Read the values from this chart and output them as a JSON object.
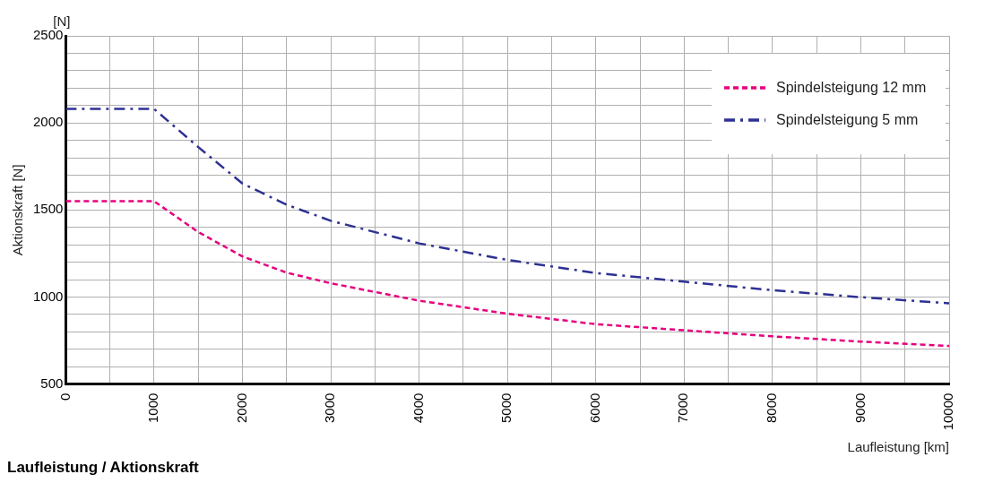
{
  "chart_data": {
    "type": "line",
    "title": "Laufleistung / Aktionskraft",
    "xlabel": "Laufleistung [km]",
    "ylabel": "Aktionskraft [N]",
    "annotations": [
      "[N]"
    ],
    "x": [
      0,
      1000,
      1500,
      2000,
      2500,
      3000,
      4000,
      5000,
      6000,
      7000,
      8000,
      9000,
      10000
    ],
    "series": [
      {
        "name": "Spindelsteigung 12 mm",
        "color": "#e6007e",
        "line_style": "dashed",
        "values": [
          1550,
          1550,
          1373,
          1233,
          1140,
          1079,
          979,
          904,
          844,
          809,
          774,
          744,
          719
        ]
      },
      {
        "name": "Spindelsteigung 5 mm",
        "color": "#2e3192",
        "line_style": "dashdot",
        "values": [
          2080,
          2080,
          1861,
          1652,
          1530,
          1438,
          1308,
          1213,
          1138,
          1088,
          1039,
          999,
          964
        ]
      }
    ],
    "xlim": [
      0,
      10000
    ],
    "xticks": [
      0,
      {
        "value": 500,
        "label": null
      },
      1000,
      {
        "value": 1500,
        "label": null
      },
      2000,
      {
        "value": 2500,
        "label": null
      },
      3000,
      {
        "value": 3500,
        "label": null
      },
      4000,
      {
        "value": 4500,
        "label": null
      },
      5000,
      {
        "value": 5500,
        "label": null
      },
      6000,
      {
        "value": 6500,
        "label": null
      },
      7000,
      {
        "value": 7500,
        "label": null
      },
      8000,
      {
        "value": 8500,
        "label": null
      },
      9000,
      {
        "value": 9500,
        "label": null
      },
      10000
    ],
    "ylim": [
      500,
      2500
    ],
    "yticks": [
      500,
      {
        "value": 600,
        "label": null
      },
      {
        "value": 700,
        "label": null
      },
      {
        "value": 800,
        "label": null
      },
      {
        "value": 900,
        "label": null
      },
      1000,
      {
        "value": 1100,
        "label": null
      },
      {
        "value": 1200,
        "label": null
      },
      {
        "value": 1300,
        "label": null
      },
      {
        "value": 1400,
        "label": null
      },
      1500,
      {
        "value": 1600,
        "label": null
      },
      {
        "value": 1700,
        "label": null
      },
      {
        "value": 1800,
        "label": null
      },
      {
        "value": 1900,
        "label": null
      },
      2000,
      {
        "value": 2100,
        "label": null
      },
      {
        "value": 2200,
        "label": null
      },
      {
        "value": 2300,
        "label": null
      },
      {
        "value": 2400,
        "label": null
      },
      2500
    ],
    "grid": true,
    "legend": "top right",
    "marker": "none"
  }
}
